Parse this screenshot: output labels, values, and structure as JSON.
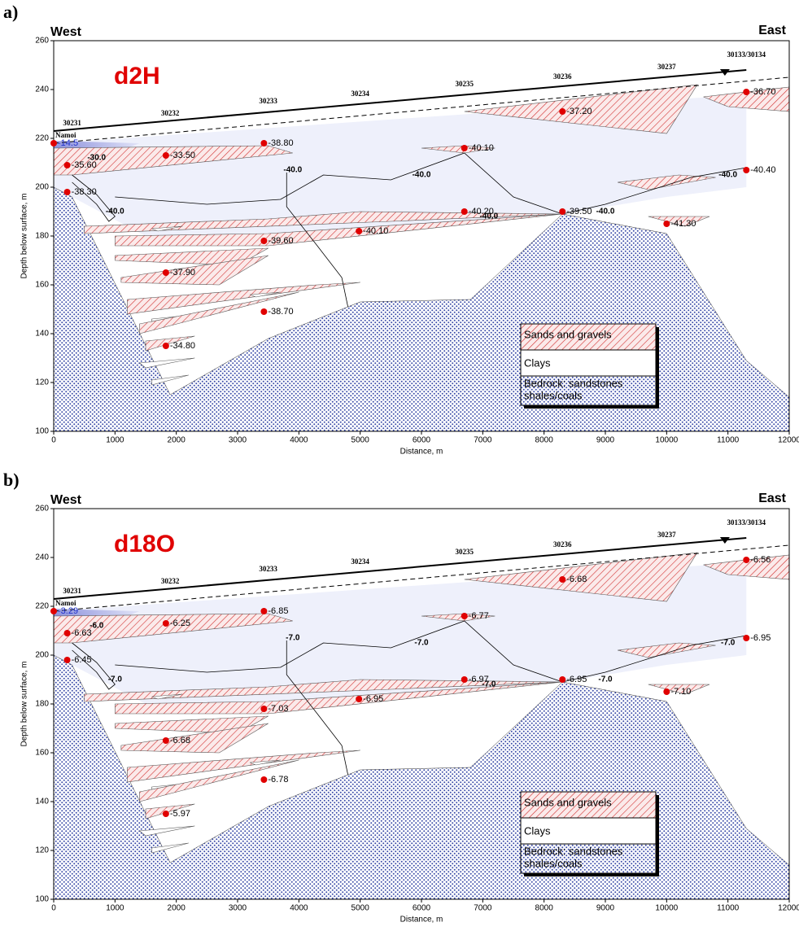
{
  "panels": [
    {
      "letter": "a)",
      "title": "d2H",
      "west": "West",
      "east": "East",
      "x_label": "Distance, m",
      "y_label": "Depth below surface, m",
      "xlim": [
        0,
        12000
      ],
      "ylim": [
        100,
        260
      ],
      "xticks": [
        0,
        1000,
        2000,
        3000,
        4000,
        5000,
        6000,
        7000,
        8000,
        9000,
        10000,
        11000,
        12000
      ],
      "yticks": [
        100,
        120,
        140,
        160,
        180,
        200,
        220,
        240,
        260
      ],
      "bores": [
        "30231",
        "30232",
        "30233",
        "30234",
        "30235",
        "30236",
        "30237",
        "30133/30134"
      ],
      "river": "Namoi",
      "samples": [
        {
          "x": 0,
          "y": 218,
          "label": "-14.5"
        },
        {
          "x": 220,
          "y": 209,
          "label": "-35.60"
        },
        {
          "x": 220,
          "y": 198,
          "label": "-38.30"
        },
        {
          "x": 1830,
          "y": 213,
          "label": "-33.50"
        },
        {
          "x": 3430,
          "y": 218,
          "label": "-38.80"
        },
        {
          "x": 6700,
          "y": 216,
          "label": "-40.10"
        },
        {
          "x": 8300,
          "y": 231,
          "label": "-37.20"
        },
        {
          "x": 11300,
          "y": 239,
          "label": "-36.70"
        },
        {
          "x": 11300,
          "y": 207,
          "label": "-40.40"
        },
        {
          "x": 6700,
          "y": 190,
          "label": "-40.20"
        },
        {
          "x": 8300,
          "y": 190,
          "label": "-39.50"
        },
        {
          "x": 10000,
          "y": 185,
          "label": "-41.30"
        },
        {
          "x": 3430,
          "y": 178,
          "label": "-39.60"
        },
        {
          "x": 4980,
          "y": 182,
          "label": "-40.10"
        },
        {
          "x": 1830,
          "y": 165,
          "label": "-37.90"
        },
        {
          "x": 3430,
          "y": 149,
          "label": "-38.70"
        },
        {
          "x": 1830,
          "y": 135,
          "label": "-34.80"
        }
      ],
      "contours": [
        "-30.0",
        "-40.0",
        "-40.0",
        "-40.0",
        "-40.0",
        "-40.0",
        "-40.0"
      ],
      "legend": [
        "Sands and gravels",
        "Clays",
        "Bedrock: sandstones",
        "shales/coals"
      ]
    },
    {
      "letter": "b)",
      "title": "d18O",
      "west": "West",
      "east": "East",
      "x_label": "Distance, m",
      "y_label": "Depth below surface, m",
      "xlim": [
        0,
        12000
      ],
      "ylim": [
        100,
        260
      ],
      "xticks": [
        0,
        1000,
        2000,
        3000,
        4000,
        5000,
        6000,
        7000,
        8000,
        9000,
        10000,
        11000,
        12000
      ],
      "yticks": [
        100,
        120,
        140,
        160,
        180,
        200,
        220,
        240,
        260
      ],
      "bores": [
        "30231",
        "30232",
        "30233",
        "30234",
        "30235",
        "30236",
        "30237",
        "30133/30134"
      ],
      "river": "Namoi",
      "samples": [
        {
          "x": 0,
          "y": 218,
          "label": "-3.29"
        },
        {
          "x": 220,
          "y": 209,
          "label": "-6.63"
        },
        {
          "x": 220,
          "y": 198,
          "label": "-6.45"
        },
        {
          "x": 1830,
          "y": 213,
          "label": "-6.25"
        },
        {
          "x": 3430,
          "y": 218,
          "label": "-6.85"
        },
        {
          "x": 6700,
          "y": 216,
          "label": "-6.77"
        },
        {
          "x": 8300,
          "y": 231,
          "label": "-6.68"
        },
        {
          "x": 11300,
          "y": 239,
          "label": "-6.56"
        },
        {
          "x": 11300,
          "y": 207,
          "label": "-6.95"
        },
        {
          "x": 6700,
          "y": 190,
          "label": "-6.97"
        },
        {
          "x": 8300,
          "y": 190,
          "label": "-6.95"
        },
        {
          "x": 10000,
          "y": 185,
          "label": "-7.10"
        },
        {
          "x": 3430,
          "y": 178,
          "label": "-7.03"
        },
        {
          "x": 4980,
          "y": 182,
          "label": "-6.95"
        },
        {
          "x": 1830,
          "y": 165,
          "label": "-6.68"
        },
        {
          "x": 3430,
          "y": 149,
          "label": "-6.78"
        },
        {
          "x": 1830,
          "y": 135,
          "label": "-5.97"
        }
      ],
      "contours": [
        "-6.0",
        "-7.0",
        "-7.0",
        "-7.0",
        "-7.0",
        "-7.0",
        "-7.0"
      ],
      "legend": [
        "Sands and gravels",
        "Clays",
        "Bedrock: sandstones",
        "shales/coals"
      ]
    }
  ]
}
